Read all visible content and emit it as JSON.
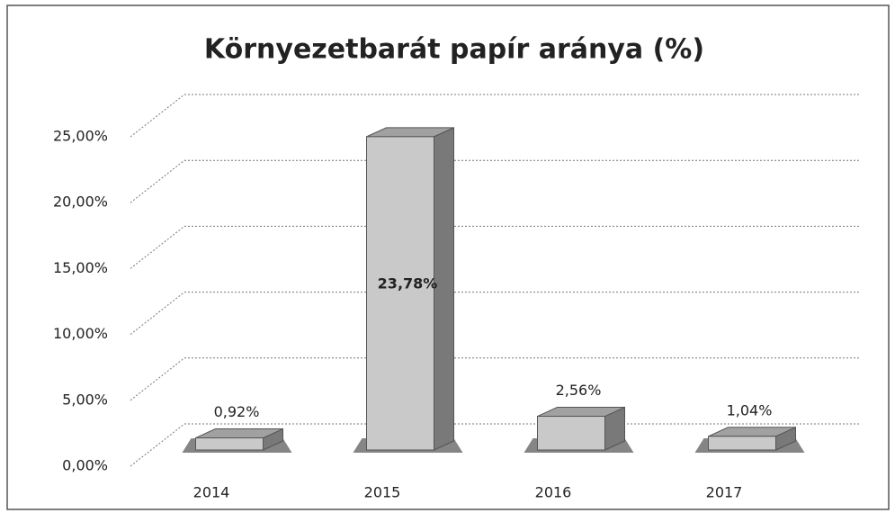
{
  "chart_data": {
    "type": "bar3d",
    "title": "Környezetbarát papír aránya (%)",
    "categories": [
      "2014",
      "2015",
      "2016",
      "2017"
    ],
    "values": [
      0.92,
      23.78,
      2.56,
      1.04
    ],
    "value_labels": [
      "0,92%",
      "23,78%",
      "2,56%",
      "1,04%"
    ],
    "color": "#c9c9c9",
    "ylim": [
      0,
      25
    ],
    "yticks": [
      {
        "value": 0,
        "label": "0,00%"
      },
      {
        "value": 5,
        "label": "5,00%"
      },
      {
        "value": 10,
        "label": "10,00%"
      },
      {
        "value": 15,
        "label": "15,00%"
      },
      {
        "value": 20,
        "label": "20,00%"
      },
      {
        "value": 25,
        "label": "25,00%"
      }
    ],
    "grid": true
  }
}
